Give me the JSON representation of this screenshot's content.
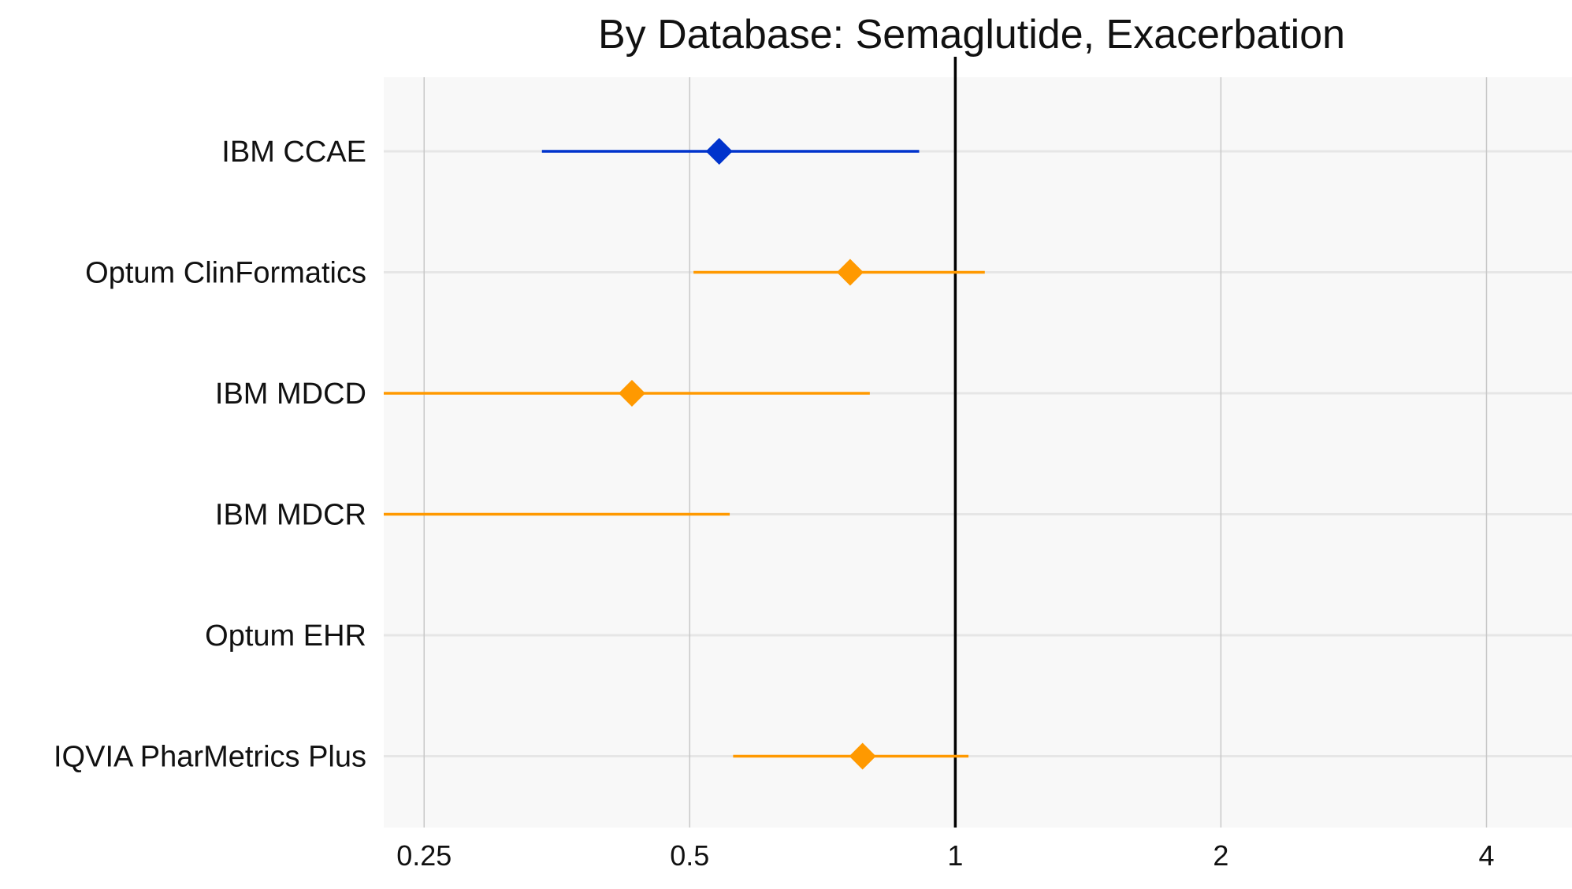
{
  "chart_data": {
    "type": "forest",
    "title": "By Database: Semaglutide, Exacerbation",
    "xlabel": "",
    "ylabel": "",
    "x_scale": "log2",
    "xlim": [
      0.225,
      5.0
    ],
    "x_ticks": [
      0.25,
      0.5,
      1,
      2,
      4
    ],
    "x_tick_labels": [
      "0.25",
      "0.5",
      "1",
      "2",
      "4"
    ],
    "reference_line": 1,
    "grid": true,
    "colors": {
      "highlight": "#0033cc",
      "default": "#ff9900",
      "panel_background": "#f8f8f8",
      "gridline": "#c8c8c8",
      "reference": "#000000"
    },
    "rows": [
      {
        "label": "IBM CCAE",
        "estimate": 0.54,
        "lower": 0.34,
        "upper": 0.91,
        "color": "#0033cc"
      },
      {
        "label": "Optum ClinFormatics",
        "estimate": 0.76,
        "lower": 0.505,
        "upper": 1.08,
        "color": "#ff9900"
      },
      {
        "label": "IBM MDCD",
        "estimate": 0.43,
        "lower": 0.22,
        "upper": 0.8,
        "color": "#ff9900"
      },
      {
        "label": "IBM MDCR",
        "estimate": null,
        "lower": 0.225,
        "upper": 0.555,
        "color": "#ff9900"
      },
      {
        "label": "Optum EHR",
        "estimate": null,
        "lower": null,
        "upper": null,
        "color": "#ff9900"
      },
      {
        "label": "IQVIA PharMetrics Plus",
        "estimate": 0.785,
        "lower": 0.56,
        "upper": 1.035,
        "color": "#ff9900"
      }
    ]
  }
}
